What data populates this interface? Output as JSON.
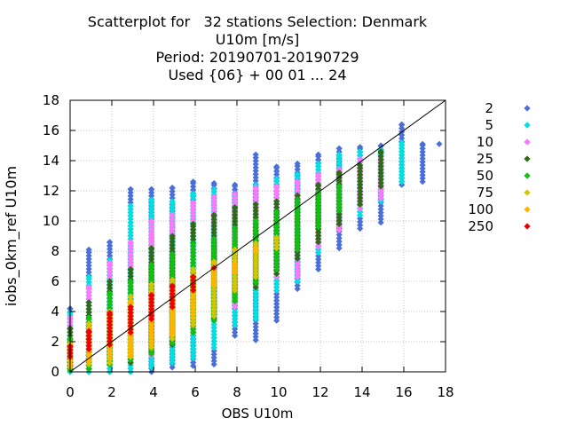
{
  "chart_data": {
    "type": "scatter",
    "title_lines": [
      "Scatterplot for   32 stations Selection: Denmark",
      "U10m [m/s]",
      "Period: 20190701-20190729",
      "Used {06} + 00 01 ... 24"
    ],
    "xlabel": "OBS U10m",
    "ylabel": "iobs_0km_ref U10m",
    "xlim": [
      0,
      18
    ],
    "ylim": [
      0,
      18
    ],
    "xticks": [
      0,
      2,
      4,
      6,
      8,
      10,
      12,
      14,
      16,
      18
    ],
    "yticks": [
      0,
      2,
      4,
      6,
      8,
      10,
      12,
      14,
      16,
      18
    ],
    "grid": true,
    "legend_position": "right",
    "diagonal_line": true,
    "x_columns": [
      0,
      0.9,
      1.9,
      2.9,
      3.9,
      4.9,
      5.9,
      6.9,
      7.9,
      8.9,
      9.9,
      10.9,
      11.9,
      12.9,
      13.9,
      14.9,
      15.9,
      16.9,
      17.7
    ],
    "series": [
      {
        "name": "2",
        "color": "#4a6fd8",
        "ranges": [
          [
            0,
            4.2
          ],
          [
            0,
            8.1
          ],
          [
            0,
            8.6
          ],
          [
            0,
            12.1
          ],
          [
            0,
            12.1
          ],
          [
            0.3,
            12.2
          ],
          [
            0.4,
            12.6
          ],
          [
            0.5,
            12.5
          ],
          [
            2.4,
            12.4
          ],
          [
            2.1,
            14.4
          ],
          [
            3.4,
            13.6
          ],
          [
            5.5,
            13.8
          ],
          [
            6.8,
            14.4
          ],
          [
            8.2,
            14.8
          ],
          [
            9.5,
            14.9
          ],
          [
            9.9,
            15.0
          ],
          [
            12.4,
            16.4
          ],
          [
            12.6,
            15.1
          ],
          [
            15.1,
            15.1
          ]
        ]
      },
      {
        "name": "5",
        "color": "#00e0e0",
        "ranges": [
          [
            0,
            3.9
          ],
          [
            0,
            6.3
          ],
          [
            0,
            7.4
          ],
          [
            0,
            11.0
          ],
          [
            0.3,
            11.4
          ],
          [
            0.6,
            11.3
          ],
          [
            0.9,
            11.8
          ],
          [
            1.6,
            12.1
          ],
          [
            3.1,
            11.7
          ],
          [
            3.5,
            12.4
          ],
          [
            5.4,
            12.8
          ],
          [
            6.0,
            13.1
          ],
          [
            7.9,
            13.8
          ],
          [
            9.4,
            14.4
          ],
          [
            10.4,
            14.6
          ],
          [
            11.3,
            14.7
          ],
          [
            12.6,
            15.2
          ]
        ]
      },
      {
        "name": "10",
        "color": "#ff77ff",
        "ranges": [
          [
            0.4,
            3.6
          ],
          [
            0.2,
            5.6
          ],
          [
            0.5,
            7.2
          ],
          [
            0.8,
            8.6
          ],
          [
            1.1,
            10.0
          ],
          [
            1.8,
            10.4
          ],
          [
            2.6,
            11.2
          ],
          [
            3.9,
            11.6
          ],
          [
            4.3,
            11.8
          ],
          [
            5.7,
            12.2
          ],
          [
            6.3,
            12.3
          ],
          [
            6.3,
            12.6
          ],
          [
            8.3,
            13.1
          ],
          [
            9.4,
            13.4
          ],
          [
            10.8,
            14.1
          ],
          [
            11.5,
            14.3
          ]
        ]
      },
      {
        "name": "25",
        "color": "#2e6b16",
        "ranges": [
          [
            0.2,
            2.9
          ],
          [
            0.2,
            4.6
          ],
          [
            0.5,
            6.0
          ],
          [
            0.6,
            6.8
          ],
          [
            1.3,
            8.2
          ],
          [
            1.8,
            9.0
          ],
          [
            2.6,
            9.8
          ],
          [
            3.5,
            10.4
          ],
          [
            4.7,
            10.9
          ],
          [
            5.6,
            11.1
          ],
          [
            6.5,
            11.3
          ],
          [
            7.5,
            11.7
          ],
          [
            8.6,
            12.4
          ],
          [
            9.8,
            13.2
          ],
          [
            11.1,
            13.7
          ],
          [
            12.3,
            14.6
          ]
        ]
      },
      {
        "name": "50",
        "color": "#12c012",
        "ranges": [
          [
            0.1,
            2.2
          ],
          [
            0.2,
            3.6
          ],
          [
            0.5,
            5.2
          ],
          [
            0.8,
            6.0
          ],
          [
            1.2,
            7.1
          ],
          [
            1.9,
            7.8
          ],
          [
            2.6,
            8.5
          ],
          [
            3.4,
            8.8
          ],
          [
            4.7,
            9.5
          ],
          [
            5.9,
            10.0
          ],
          [
            6.8,
            10.6
          ],
          [
            8.1,
            11.4
          ],
          [
            9.6,
            11.9
          ],
          [
            10.7,
            12.3
          ]
        ]
      },
      {
        "name": "75",
        "color": "#d4c500",
        "ranges": [
          [
            0.3,
            1.9
          ],
          [
            0.5,
            3.2
          ],
          [
            0.6,
            4.0
          ],
          [
            1.0,
            5.0
          ],
          [
            1.6,
            5.8
          ],
          [
            2.2,
            6.1
          ],
          [
            3.1,
            6.8
          ],
          [
            3.7,
            7.3
          ],
          [
            5.4,
            8.1
          ],
          [
            6.3,
            8.5
          ],
          [
            8.2,
            8.9
          ]
        ]
      },
      {
        "name": "100",
        "color": "#ffb400",
        "ranges": [
          [
            0.5,
            1.8
          ],
          [
            0.7,
            2.8
          ],
          [
            1.0,
            3.5
          ],
          [
            1.1,
            4.6
          ],
          [
            1.8,
            5.2
          ],
          [
            2.5,
            5.6
          ],
          [
            3.6,
            6.3
          ],
          [
            5.8,
            7.0
          ],
          [
            6.6,
            7.2
          ],
          [
            8.0,
            8.2
          ]
        ]
      },
      {
        "name": "250",
        "color": "#ee0000",
        "ranges": [
          [
            1.0,
            1.7
          ],
          [
            1.5,
            2.7
          ],
          [
            1.8,
            3.9
          ],
          [
            2.6,
            4.3
          ],
          [
            3.5,
            5.1
          ],
          [
            4.3,
            5.7
          ],
          [
            5.4,
            6.3
          ],
          [
            6.9,
            6.9
          ]
        ]
      }
    ]
  }
}
